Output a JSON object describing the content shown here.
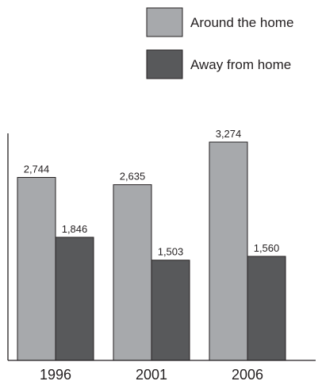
{
  "chart_data": {
    "type": "bar",
    "title": "",
    "xlabel": "",
    "ylabel": "",
    "categories": [
      "1996",
      "2001",
      "2006"
    ],
    "series": [
      {
        "name": "Around the home",
        "color": "#a7a9ac",
        "values": [
          2744,
          2635,
          3274
        ],
        "value_labels": [
          "2,744",
          "2,635",
          "3,274"
        ]
      },
      {
        "name": "Away from home",
        "color": "#58595b",
        "values": [
          1846,
          1503,
          1560
        ],
        "value_labels": [
          "1,846",
          "1,503",
          "1,560"
        ]
      }
    ],
    "ylim": [
      0,
      3500
    ],
    "grid": false,
    "legend_position": "top-right",
    "bar_stroke_color": "#231f20",
    "axis_color": "#231f20"
  }
}
